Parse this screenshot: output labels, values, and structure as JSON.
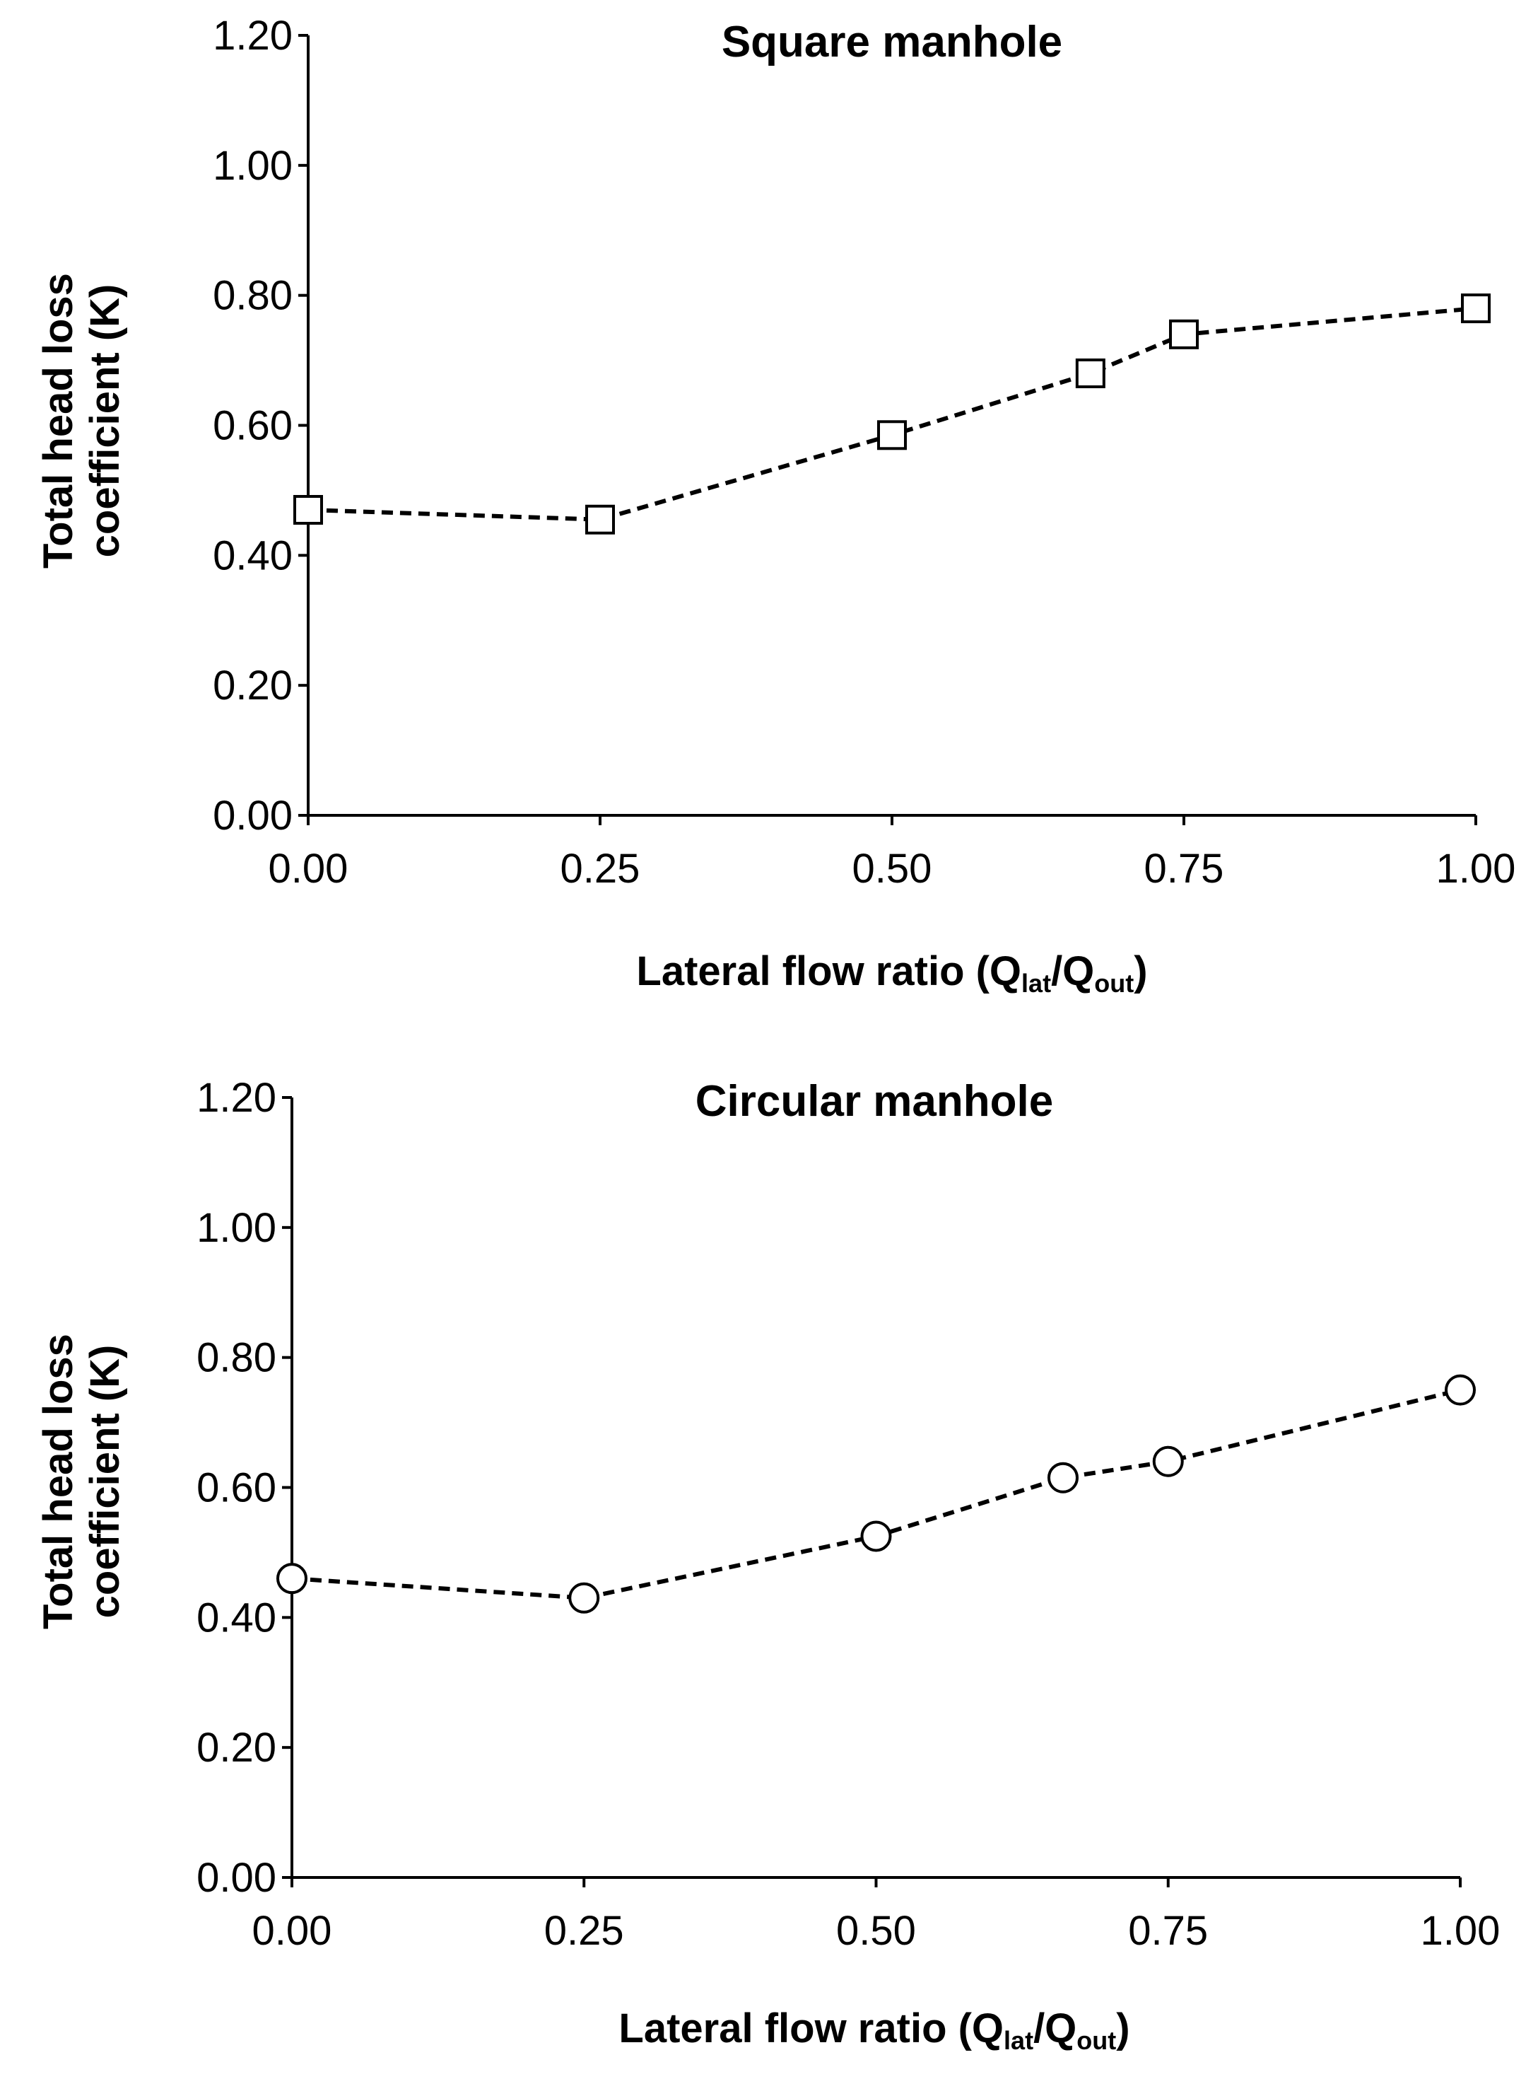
{
  "chart_data": [
    {
      "type": "line",
      "title": "Square manhole",
      "xlabel_main": "Lateral flow ratio (Q",
      "xlabel_sub1": "lat",
      "xlabel_mid": "/Q",
      "xlabel_sub2": "out",
      "xlabel_end": ")",
      "ylabel_line1": "Total head loss",
      "ylabel_line2": "coefficient (K)",
      "xlim": [
        0,
        1
      ],
      "ylim": [
        0,
        1.2
      ],
      "xticks": [
        "0.00",
        "0.25",
        "0.50",
        "0.75",
        "1.00"
      ],
      "yticks": [
        "0.00",
        "0.20",
        "0.40",
        "0.60",
        "0.80",
        "1.00",
        "1.20"
      ],
      "marker": "square",
      "x": [
        0.0,
        0.25,
        0.5,
        0.67,
        0.75,
        1.0
      ],
      "y": [
        0.47,
        0.455,
        0.585,
        0.68,
        0.74,
        0.78
      ]
    },
    {
      "type": "line",
      "title": "Circular manhole",
      "xlabel_main": "Lateral flow ratio (Q",
      "xlabel_sub1": "lat",
      "xlabel_mid": "/Q",
      "xlabel_sub2": "out",
      "xlabel_end": ")",
      "ylabel_line1": "Total head loss",
      "ylabel_line2": "coefficient (K)",
      "xlim": [
        0,
        1
      ],
      "ylim": [
        0,
        1.2
      ],
      "xticks": [
        "0.00",
        "0.25",
        "0.50",
        "0.75",
        "1.00"
      ],
      "yticks": [
        "0.00",
        "0.20",
        "0.40",
        "0.60",
        "0.80",
        "1.00",
        "1.20"
      ],
      "marker": "circle",
      "x": [
        0.0,
        0.25,
        0.5,
        0.66,
        0.75,
        1.0
      ],
      "y": [
        0.46,
        0.43,
        0.525,
        0.615,
        0.64,
        0.75
      ]
    }
  ]
}
